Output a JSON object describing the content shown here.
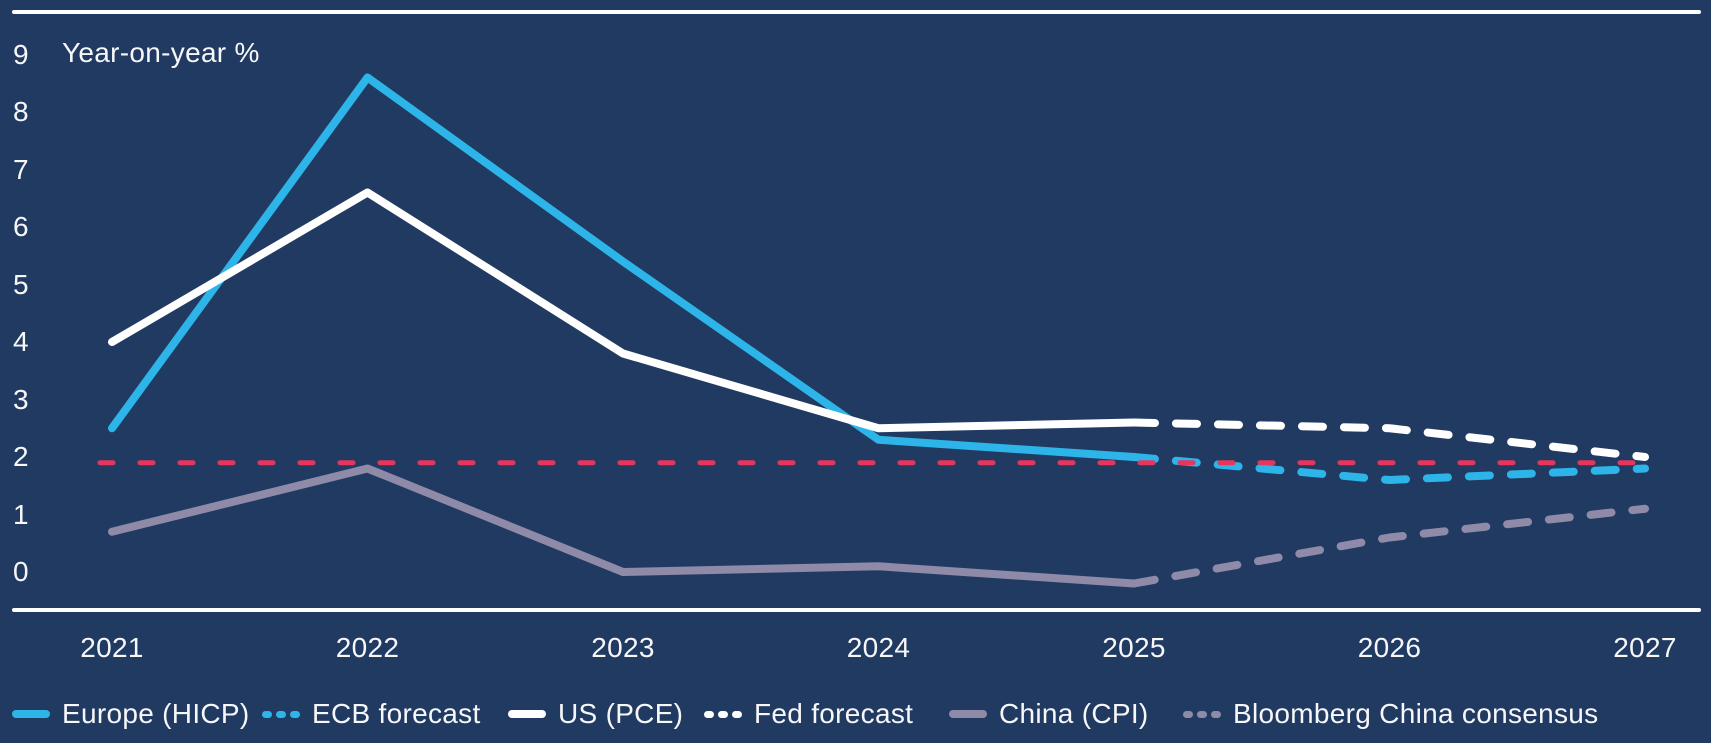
{
  "chart_data": {
    "type": "line",
    "title": "",
    "ylabel": "Year-on-year %",
    "xlabel": "",
    "x": [
      2021,
      2022,
      2023,
      2024,
      2025,
      2026,
      2027
    ],
    "yticks": [
      0,
      1,
      2,
      3,
      4,
      5,
      6,
      7,
      8,
      9
    ],
    "ylim": [
      -0.7,
      9.7
    ],
    "grid": "off",
    "legend_position": "bottom",
    "series": [
      {
        "name": "Europe (HICP)",
        "color": "#2DB5E9",
        "style": "solid",
        "values": [
          2.5,
          8.6,
          5.4,
          2.3,
          2.0,
          null,
          null
        ]
      },
      {
        "name": "ECB forecast",
        "color": "#2DB5E9",
        "style": "dashed",
        "values": [
          null,
          null,
          null,
          null,
          2.0,
          1.6,
          1.8
        ]
      },
      {
        "name": "US (PCE)",
        "color": "#FFFFFF",
        "style": "solid",
        "values": [
          4.0,
          6.6,
          3.8,
          2.5,
          2.6,
          null,
          null
        ]
      },
      {
        "name": "Fed forecast",
        "color": "#FFFFFF",
        "style": "dashed",
        "values": [
          null,
          null,
          null,
          null,
          2.6,
          2.5,
          2.0
        ]
      },
      {
        "name": "China (CPI)",
        "color": "#8E8AA8",
        "style": "solid",
        "values": [
          0.7,
          1.8,
          0.0,
          0.1,
          -0.2,
          null,
          null
        ]
      },
      {
        "name": "Bloomberg China consensus",
        "color": "#8E8AA8",
        "style": "dashed",
        "values": [
          null,
          null,
          null,
          null,
          -0.2,
          0.6,
          1.1
        ]
      }
    ],
    "target_line": {
      "value": 1.9,
      "color": "#E8355C",
      "style": "dashed"
    }
  },
  "colors": {
    "background": "#213A61",
    "text": "#F7F7FA",
    "axis_rule": "#FFFFFF"
  }
}
